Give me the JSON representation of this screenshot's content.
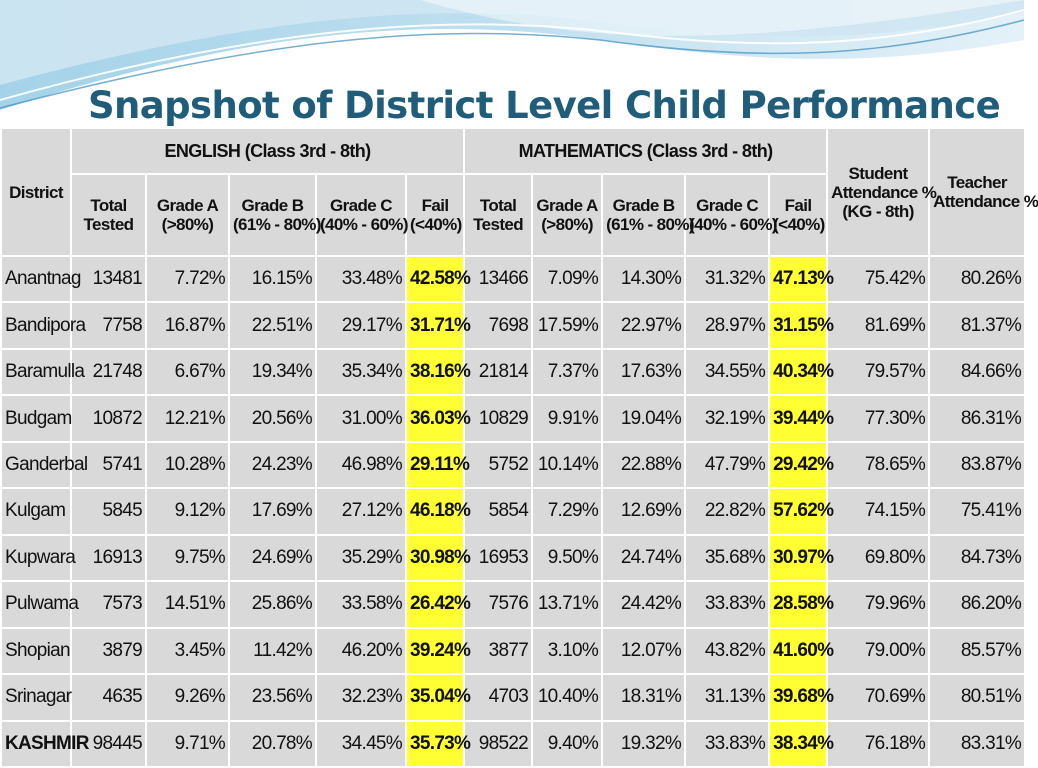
{
  "slide": {
    "title": "Snapshot of District Level Child Performance"
  },
  "colors": {
    "title": "#1f5d7a",
    "cell_bg": "#d9d9d9",
    "fail_highlight": "#ffff33",
    "wave_light": "#cfe6f2",
    "wave_mid": "#8cc6e2",
    "wave_dark": "#3a8fbf"
  },
  "table": {
    "district_header": "District",
    "english_header": "ENGLISH (Class 3rd - 8th)",
    "math_header": "MATHEMATICS (Class 3rd - 8th)",
    "sub_headers": [
      [
        "Total",
        "Tested"
      ],
      [
        "Grade A",
        "(>80%)"
      ],
      [
        "Grade B",
        "(61% - 80%)"
      ],
      [
        "Grade C",
        "(40% - 60%)"
      ],
      [
        "Fail",
        "(<40%)"
      ]
    ],
    "student_attendance_header": [
      "Student",
      "Attendance %",
      "(KG - 8th)"
    ],
    "teacher_attendance_header": [
      "Teacher",
      "Attendance %"
    ],
    "rows": [
      [
        "Anantnag",
        "13481",
        "7.72%",
        "16.15%",
        "33.48%",
        "42.58%",
        "13466",
        "7.09%",
        "14.30%",
        "31.32%",
        "47.13%",
        "75.42%",
        "80.26%"
      ],
      [
        "Bandipora",
        "7758",
        "16.87%",
        "22.51%",
        "29.17%",
        "31.71%",
        "7698",
        "17.59%",
        "22.97%",
        "28.97%",
        "31.15%",
        "81.69%",
        "81.37%"
      ],
      [
        "Baramulla",
        "21748",
        "6.67%",
        "19.34%",
        "35.34%",
        "38.16%",
        "21814",
        "7.37%",
        "17.63%",
        "34.55%",
        "40.34%",
        "79.57%",
        "84.66%"
      ],
      [
        "Budgam",
        "10872",
        "12.21%",
        "20.56%",
        "31.00%",
        "36.03%",
        "10829",
        "9.91%",
        "19.04%",
        "32.19%",
        "39.44%",
        "77.30%",
        "86.31%"
      ],
      [
        "Ganderbal",
        "5741",
        "10.28%",
        "24.23%",
        "46.98%",
        "29.11%",
        "5752",
        "10.14%",
        "22.88%",
        "47.79%",
        "29.42%",
        "78.65%",
        "83.87%"
      ],
      [
        "Kulgam",
        "5845",
        "9.12%",
        "17.69%",
        "27.12%",
        "46.18%",
        "5854",
        "7.29%",
        "12.69%",
        "22.82%",
        "57.62%",
        "74.15%",
        "75.41%"
      ],
      [
        "Kupwara",
        "16913",
        "9.75%",
        "24.69%",
        "35.29%",
        "30.98%",
        "16953",
        "9.50%",
        "24.74%",
        "35.68%",
        "30.97%",
        "69.80%",
        "84.73%"
      ],
      [
        "Pulwama",
        "7573",
        "14.51%",
        "25.86%",
        "33.58%",
        "26.42%",
        "7576",
        "13.71%",
        "24.42%",
        "33.83%",
        "28.58%",
        "79.96%",
        "86.20%"
      ],
      [
        "Shopian",
        "3879",
        "3.45%",
        "11.42%",
        "46.20%",
        "39.24%",
        "3877",
        "3.10%",
        "12.07%",
        "43.82%",
        "41.60%",
        "79.00%",
        "85.57%"
      ],
      [
        "Srinagar",
        "4635",
        "9.26%",
        "23.56%",
        "32.23%",
        "35.04%",
        "4703",
        "10.40%",
        "18.31%",
        "31.13%",
        "39.68%",
        "70.69%",
        "80.51%"
      ]
    ],
    "total_row": [
      "KASHMIR",
      "98445",
      "9.71%",
      "20.78%",
      "34.45%",
      "35.73%",
      "98522",
      "9.40%",
      "19.32%",
      "33.83%",
      "38.34%",
      "76.18%",
      "83.31%"
    ]
  }
}
